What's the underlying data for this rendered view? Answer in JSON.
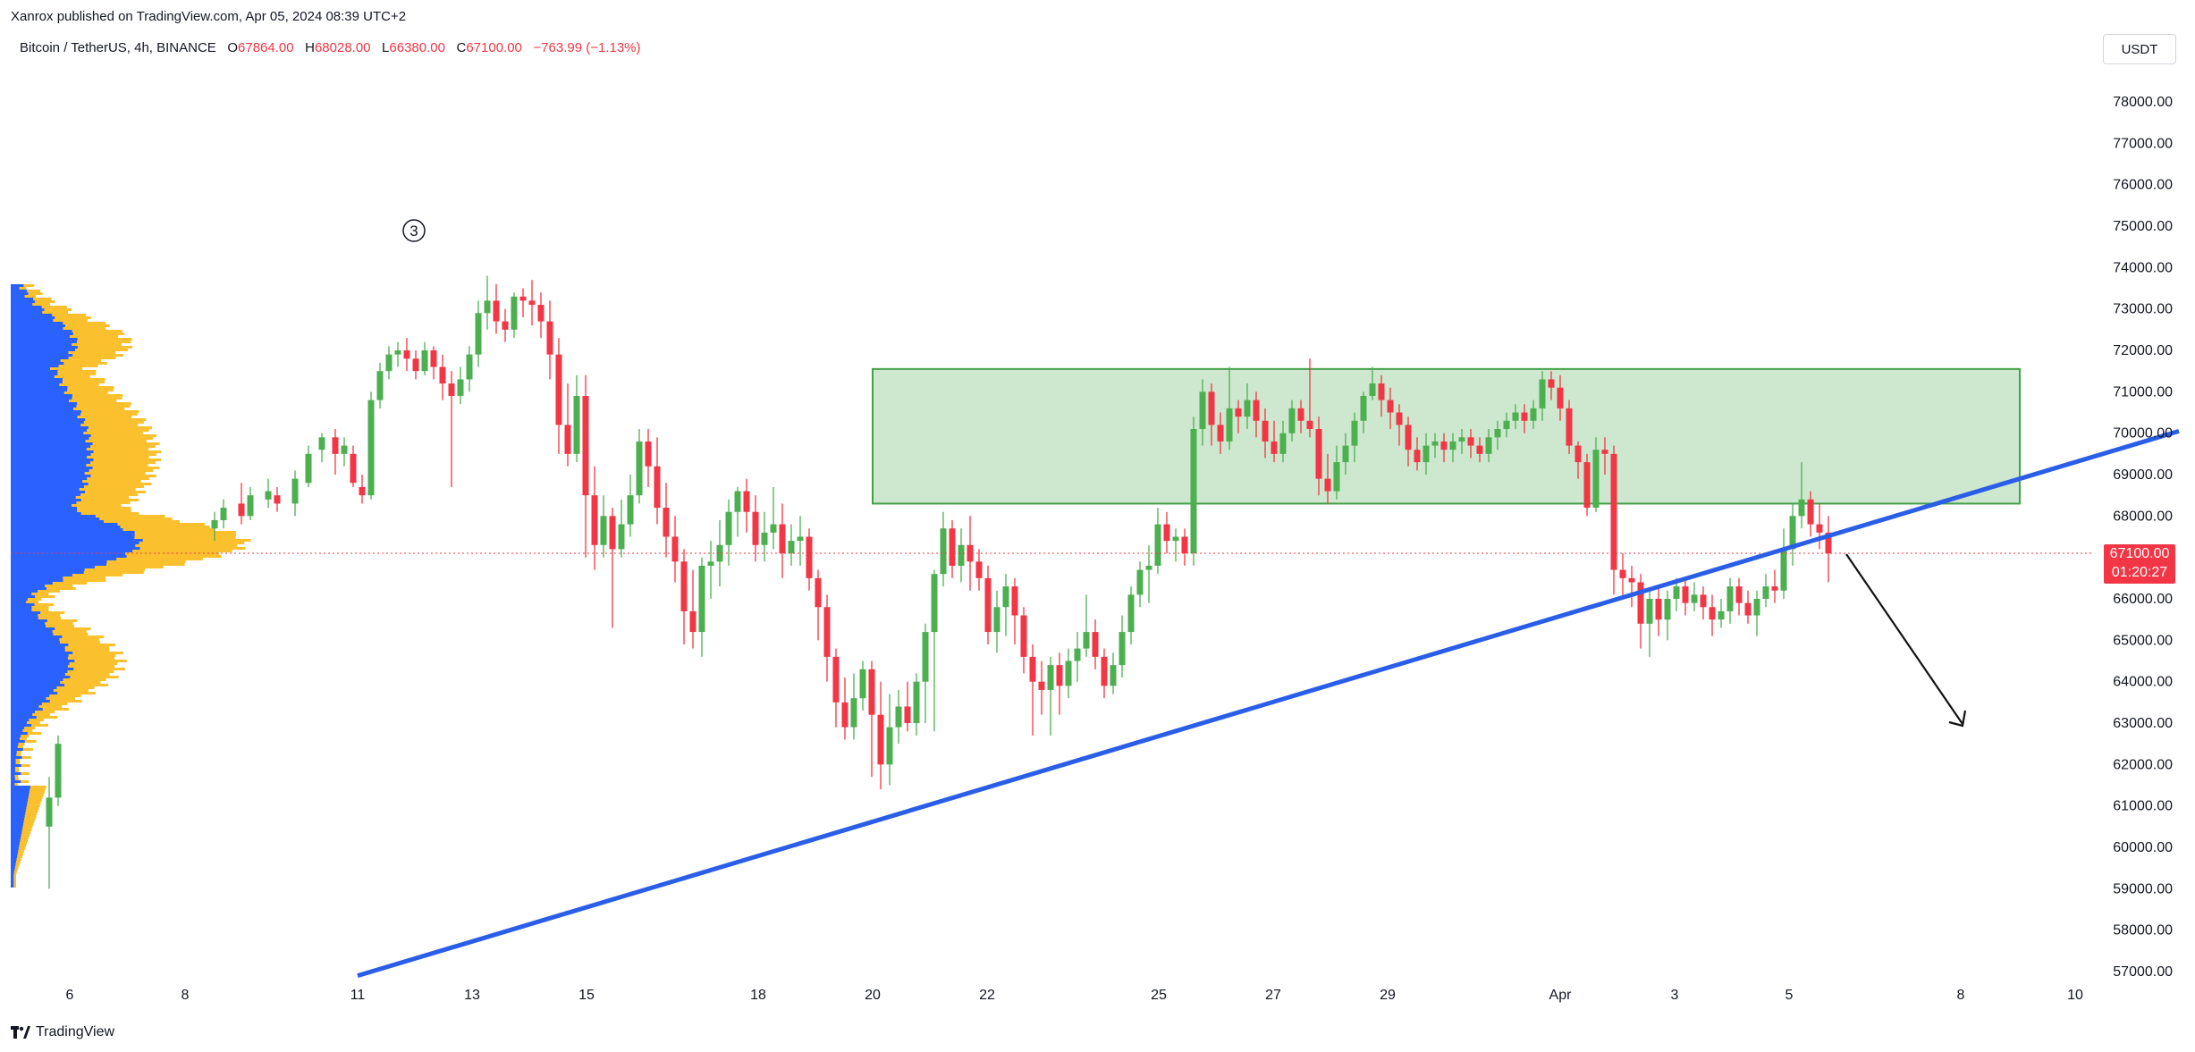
{
  "header": {
    "publisher": "Xanrox published on TradingView.com, Apr 05, 2024 08:39 UTC+2"
  },
  "symbol": {
    "name": "Bitcoin / TetherUS, 4h, BINANCE",
    "o_label": "O",
    "o": "67864.00",
    "h_label": "H",
    "h": "68028.00",
    "l_label": "L",
    "l": "66380.00",
    "c_label": "C",
    "c": "67100.00",
    "change": "−763.99 (−1.13%)"
  },
  "currency": "USDT",
  "last_price": {
    "price": "67100.00",
    "countdown": "01:20:27"
  },
  "wave_label": "3",
  "footer": {
    "brand": "TradingView"
  },
  "colors": {
    "up": "#4caf50",
    "down": "#f23645",
    "trend": "#2a5ee8",
    "zone_fill": "#c8e6c9",
    "zone_border": "#43a047",
    "vp_blue": "#2962ff",
    "vp_orange": "#fbc02d"
  },
  "chart_data": {
    "type": "candlestick",
    "y_axis": {
      "min": 57000,
      "max": 78000,
      "ticks": [
        "78000.00",
        "77000.00",
        "76000.00",
        "75000.00",
        "74000.00",
        "73000.00",
        "72000.00",
        "71000.00",
        "70000.00",
        "69000.00",
        "68000.00",
        "67000.00",
        "66000.00",
        "65000.00",
        "64000.00",
        "63000.00",
        "62000.00",
        "61000.00",
        "60000.00",
        "59000.00",
        "58000.00",
        "57000.00"
      ]
    },
    "x_axis": {
      "ticks": [
        "6",
        "8",
        "11",
        "13",
        "15",
        "18",
        "20",
        "22",
        "25",
        "27",
        "29",
        "Apr",
        "3",
        "5",
        "8",
        "10"
      ]
    },
    "zone": {
      "from": 68300,
      "to": 71550
    },
    "trendline": {
      "start_price": 56900,
      "end_price": 70050
    },
    "annotations": [
      "resistance zone",
      "rising trendline",
      "down arrow"
    ]
  }
}
